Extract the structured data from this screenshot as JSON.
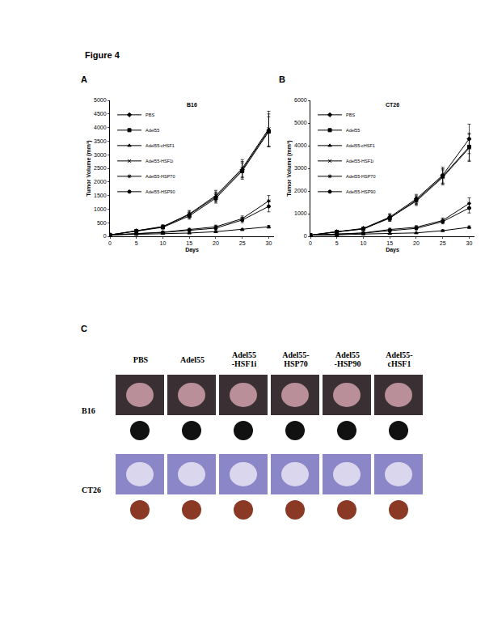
{
  "figure": {
    "title": "Figure 4",
    "panels": [
      "A",
      "B",
      "C"
    ],
    "panel_C": {
      "columns": [
        "PBS",
        "Adel55",
        "Adel55\n-HSF1i",
        "Adel55-\nHSP70",
        "Adel55\n-HSP90",
        "Adel55-\ncHSF1"
      ],
      "rows": [
        "B16",
        "CT26"
      ]
    }
  },
  "chart_data": [
    {
      "type": "line",
      "title": "B16",
      "x_label": "Days",
      "y_label": "Tumor Volume (mm³)",
      "x": [
        0,
        5,
        10,
        15,
        20,
        25,
        30
      ],
      "xlim": [
        0,
        31
      ],
      "xticks": [
        0,
        5,
        10,
        15,
        20,
        25,
        30
      ],
      "ylim": [
        0,
        5000
      ],
      "yticks": [
        0,
        500,
        1000,
        1500,
        2000,
        2500,
        3000,
        3500,
        4000,
        4500,
        5000
      ],
      "legend": "top left",
      "series": [
        {
          "name": "PBS",
          "color": "#000000",
          "marker": "diamond",
          "values": [
            50,
            200,
            350,
            800,
            1450,
            2450,
            3900
          ],
          "errors": [
            10,
            40,
            60,
            120,
            180,
            300,
            600
          ]
        },
        {
          "name": "Adel55",
          "color": "#000000",
          "marker": "square",
          "values": [
            50,
            190,
            330,
            750,
            1400,
            2400,
            3850
          ],
          "errors": [
            10,
            40,
            60,
            120,
            180,
            300,
            550
          ]
        },
        {
          "name": "Adel55-cHSF1",
          "color": "#000000",
          "marker": "triangle",
          "values": [
            50,
            70,
            100,
            120,
            170,
            250,
            350
          ],
          "errors": [
            10,
            15,
            20,
            25,
            30,
            40,
            50
          ]
        },
        {
          "name": "Adel55-HSF1i",
          "color": "#000000",
          "marker": "x",
          "values": [
            50,
            210,
            360,
            820,
            1500,
            2500,
            3950
          ],
          "errors": [
            10,
            40,
            60,
            130,
            190,
            320,
            650
          ]
        },
        {
          "name": "Adel55-HSP70",
          "color": "#000000",
          "marker": "asterisk",
          "values": [
            50,
            100,
            150,
            250,
            350,
            650,
            1300
          ],
          "errors": [
            10,
            20,
            25,
            40,
            60,
            100,
            200
          ]
        },
        {
          "name": "Adel55-HSP90",
          "color": "#000000",
          "marker": "circle",
          "values": [
            50,
            90,
            140,
            220,
            300,
            600,
            1100
          ],
          "errors": [
            10,
            20,
            25,
            40,
            60,
            100,
            200
          ]
        }
      ]
    },
    {
      "type": "line",
      "title": "CT26",
      "x_label": "Days",
      "y_label": "Tumor Volume (mm³)",
      "x": [
        0,
        5,
        10,
        15,
        20,
        25,
        30
      ],
      "xlim": [
        0,
        31
      ],
      "xticks": [
        0,
        5,
        10,
        15,
        20,
        25,
        30
      ],
      "ylim": [
        0,
        6000
      ],
      "yticks": [
        0,
        1000,
        2000,
        3000,
        4000,
        5000,
        6000
      ],
      "legend": "top left",
      "series": [
        {
          "name": "PBS",
          "color": "#000000",
          "marker": "diamond",
          "values": [
            50,
            200,
            350,
            850,
            1650,
            2700,
            4300
          ],
          "errors": [
            10,
            40,
            60,
            150,
            200,
            350,
            650
          ]
        },
        {
          "name": "Adel55",
          "color": "#000000",
          "marker": "square",
          "values": [
            50,
            190,
            330,
            800,
            1600,
            2650,
            3950
          ],
          "errors": [
            10,
            40,
            60,
            140,
            190,
            330,
            600
          ]
        },
        {
          "name": "Adel55-cHSF1",
          "color": "#000000",
          "marker": "triangle",
          "values": [
            50,
            60,
            100,
            120,
            150,
            250,
            400
          ],
          "errors": [
            10,
            15,
            20,
            25,
            30,
            40,
            60
          ]
        },
        {
          "name": "Adel55-HSF1i",
          "color": "#000000",
          "marker": "x",
          "values": [
            50,
            210,
            320,
            820,
            1550,
            2600,
            3900
          ],
          "errors": [
            10,
            40,
            60,
            140,
            190,
            330,
            600
          ]
        },
        {
          "name": "Adel55-HSP70",
          "color": "#000000",
          "marker": "asterisk",
          "values": [
            50,
            110,
            150,
            300,
            400,
            700,
            1450
          ],
          "errors": [
            10,
            20,
            25,
            50,
            70,
            110,
            250
          ]
        },
        {
          "name": "Adel55-HSP90",
          "color": "#000000",
          "marker": "circle",
          "values": [
            50,
            100,
            140,
            250,
            350,
            650,
            1250
          ],
          "errors": [
            10,
            20,
            25,
            45,
            60,
            100,
            220
          ]
        }
      ]
    }
  ]
}
